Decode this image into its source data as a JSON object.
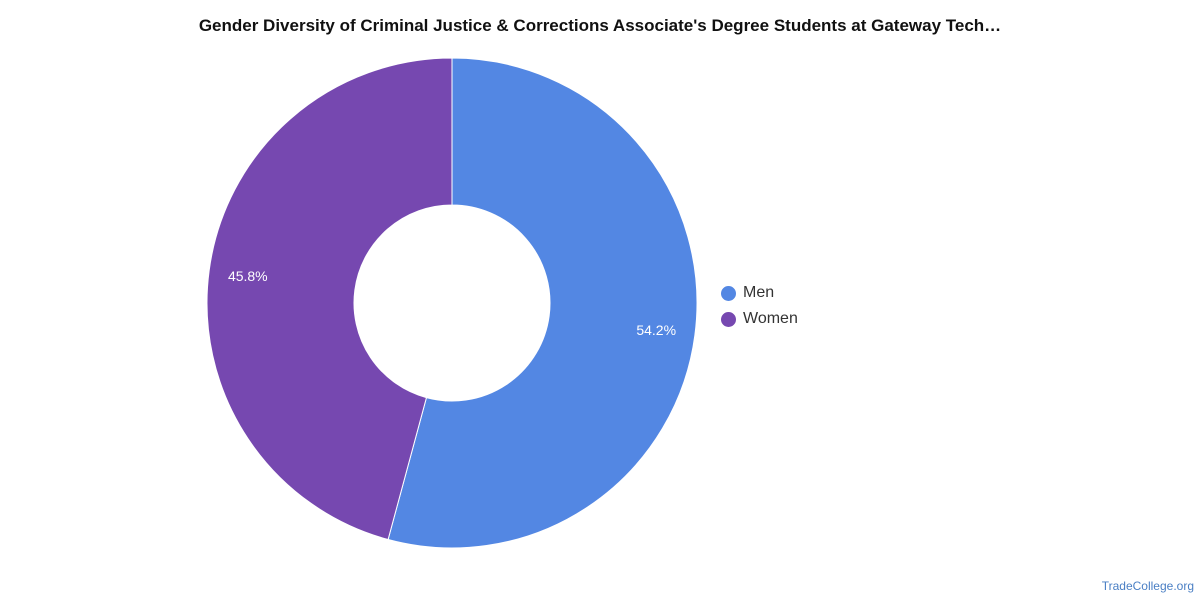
{
  "chart_data": {
    "type": "pie",
    "title": "Gender Diversity of Criminal Justice & Corrections Associate's Degree Students at Gateway Tech…",
    "categories": [
      "Men",
      "Women"
    ],
    "values": [
      54.2,
      45.8
    ],
    "value_labels": [
      "54.2%",
      "45.8%"
    ],
    "colors": [
      "#5387e3",
      "#7648b0"
    ],
    "donut": true,
    "legend_position": "right"
  },
  "legend": {
    "items": [
      {
        "label": "Men",
        "color": "#5387e3"
      },
      {
        "label": "Women",
        "color": "#7648b0"
      }
    ]
  },
  "source": "TradeCollege.org"
}
